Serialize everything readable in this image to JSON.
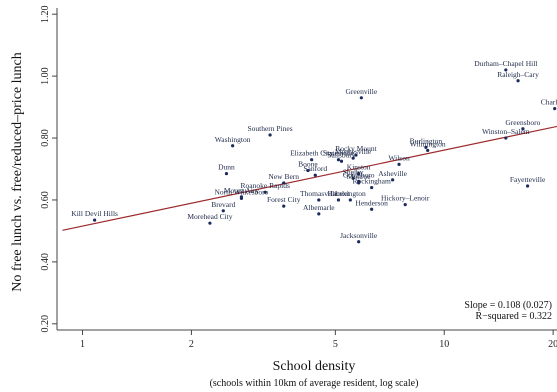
{
  "chart_data": {
    "type": "scatter",
    "title": "",
    "xlabel": "School density",
    "xlabel_sub": "(schools within 10km of average resident, log scale)",
    "ylabel": "No free lunch vs. free/reduced–price lunch",
    "x_scale": "log",
    "xlim": [
      0.85,
      20.5
    ],
    "ylim": [
      0.18,
      1.22
    ],
    "x_ticks": [
      1,
      2,
      5,
      10,
      20
    ],
    "x_tick_labels": [
      "1",
      "2",
      "5",
      "10",
      "20"
    ],
    "y_ticks": [
      0.2,
      0.4,
      0.6,
      0.8,
      1.0,
      1.2
    ],
    "y_tick_labels": [
      "0.20",
      "0.40",
      "0.60",
      "0.80",
      "1.00",
      "1.20"
    ],
    "grid": false,
    "colors": {
      "points": "#1a2a5c",
      "fit_line": "#9e2a2b",
      "axes": "#444444"
    },
    "fit_line": {
      "x": [
        0.88,
        21
      ],
      "y": [
        0.502,
        0.84
      ]
    },
    "annotations": [
      "Slope = 0.108 (0.027)",
      "R−squared = 0.322"
    ],
    "points": [
      {
        "label": "Kill Devil Hills",
        "x": 1.08,
        "y": 0.535
      },
      {
        "label": "Morehead City",
        "x": 2.25,
        "y": 0.525
      },
      {
        "label": "Brevard",
        "x": 2.45,
        "y": 0.565
      },
      {
        "label": "Mount Airy",
        "x": 2.75,
        "y": 0.61
      },
      {
        "label": "North Wilkesboro",
        "x": 2.75,
        "y": 0.605
      },
      {
        "label": "Roanoke Rapids",
        "x": 3.2,
        "y": 0.625
      },
      {
        "label": "Dunn",
        "x": 2.5,
        "y": 0.685
      },
      {
        "label": "Washington",
        "x": 2.6,
        "y": 0.775
      },
      {
        "label": "Southern Pines",
        "x": 3.3,
        "y": 0.81
      },
      {
        "label": "New Bern",
        "x": 3.6,
        "y": 0.655
      },
      {
        "label": "Forest City",
        "x": 3.6,
        "y": 0.58
      },
      {
        "label": "Elizabeth City",
        "x": 4.3,
        "y": 0.73
      },
      {
        "label": "Sanford",
        "x": 4.4,
        "y": 0.68
      },
      {
        "label": "Boone",
        "x": 4.2,
        "y": 0.695
      },
      {
        "label": "Thomasville",
        "x": 4.5,
        "y": 0.6
      },
      {
        "label": "Albemarle",
        "x": 4.5,
        "y": 0.555
      },
      {
        "label": "Statesville",
        "x": 5.1,
        "y": 0.73
      },
      {
        "label": "Salisbury",
        "x": 5.2,
        "y": 0.725
      },
      {
        "label": "Mooresville",
        "x": 5.6,
        "y": 0.735
      },
      {
        "label": "Hamlet",
        "x": 5.1,
        "y": 0.6
      },
      {
        "label": "Lexington",
        "x": 5.5,
        "y": 0.6
      },
      {
        "label": "Greenville",
        "x": 5.9,
        "y": 0.93
      },
      {
        "label": "Rocky Mount",
        "x": 5.7,
        "y": 0.745
      },
      {
        "label": "Kinston",
        "x": 5.8,
        "y": 0.685
      },
      {
        "label": "Shelby",
        "x": 5.6,
        "y": 0.67
      },
      {
        "label": "Goldsboro",
        "x": 5.8,
        "y": 0.66
      },
      {
        "label": "Monroe",
        "x": 5.8,
        "y": 0.655
      },
      {
        "label": "Rockingham",
        "x": 6.3,
        "y": 0.64
      },
      {
        "label": "Henderson",
        "x": 6.3,
        "y": 0.57
      },
      {
        "label": "Jacksonville",
        "x": 5.8,
        "y": 0.465
      },
      {
        "label": "Asheville",
        "x": 7.2,
        "y": 0.665
      },
      {
        "label": "Wilson",
        "x": 7.5,
        "y": 0.715
      },
      {
        "label": "Hickory–Lenoir",
        "x": 7.8,
        "y": 0.585
      },
      {
        "label": "Burlington",
        "x": 8.9,
        "y": 0.77
      },
      {
        "label": "Wilmington",
        "x": 9.0,
        "y": 0.76
      },
      {
        "label": "Durham–Chapel Hill",
        "x": 14.8,
        "y": 1.02
      },
      {
        "label": "Raleigh–Cary",
        "x": 16.0,
        "y": 0.985
      },
      {
        "label": "Charlotte",
        "x": 20.2,
        "y": 0.895
      },
      {
        "label": "Greensboro",
        "x": 16.5,
        "y": 0.83
      },
      {
        "label": "Winston–Salem",
        "x": 14.8,
        "y": 0.8
      },
      {
        "label": "Fayetteville",
        "x": 17.0,
        "y": 0.645
      }
    ]
  }
}
